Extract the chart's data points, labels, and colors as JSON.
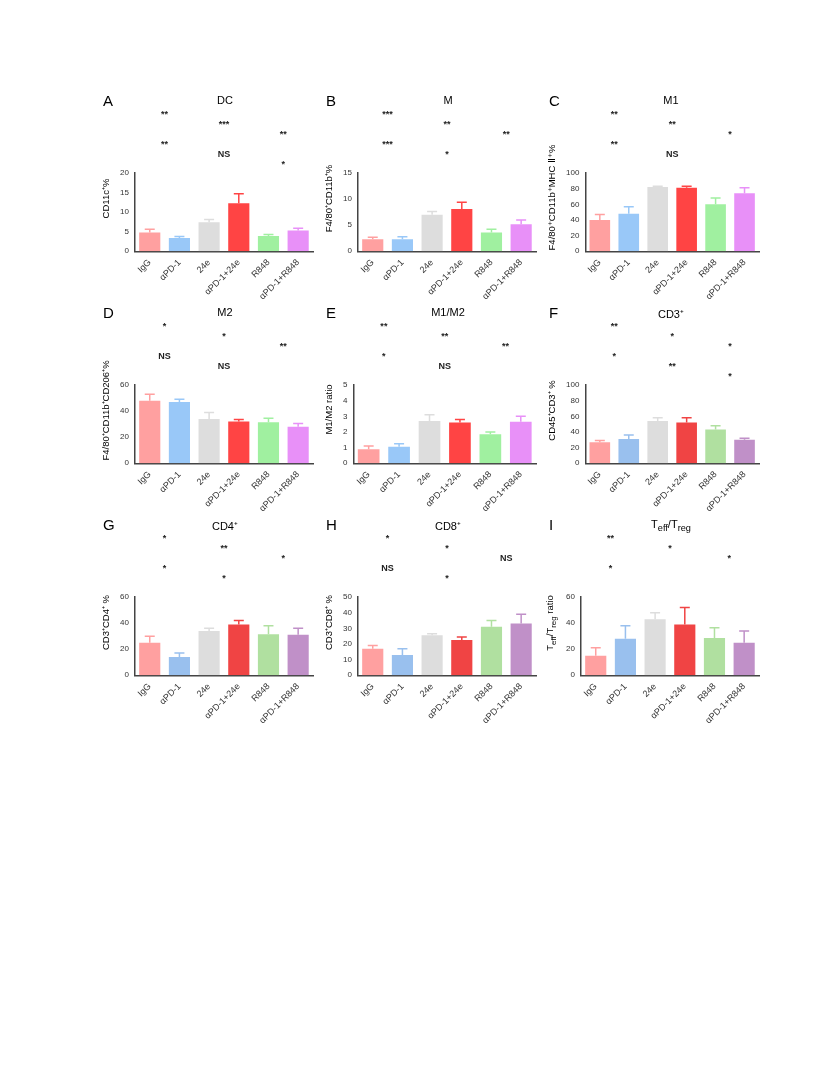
{
  "chart_data": [
    {
      "type": "bar",
      "title": "DC",
      "ylabel": "CD11c⁺%",
      "categories": [
        "IgG",
        "αPD-1",
        "24e",
        "αPD-1+24e",
        "R848",
        "αPD-1+R848"
      ],
      "values": [
        4.8,
        3.4,
        7.4,
        12.3,
        3.9,
        5.3
      ],
      "errors": [
        [
          4.8,
          5.6
        ],
        [
          3.4,
          3.8
        ],
        [
          7.4,
          8.1
        ],
        [
          12.3,
          14.7
        ],
        [
          3.9,
          4.3
        ],
        [
          5.3,
          5.9
        ]
      ],
      "colors": [
        "#ffa0a0",
        "#99c8f8",
        "#dddddd",
        "#ff4444",
        "#a0f0a0",
        "#e890f8"
      ],
      "ylim": [
        0,
        20
      ],
      "yticks": [
        0,
        5,
        10,
        15,
        20
      ],
      "grid": false,
      "legend": false,
      "annotations": [
        "A",
        "**",
        "***",
        "**",
        "**",
        "NS",
        "*"
      ]
    },
    {
      "type": "bar",
      "title": "M",
      "ylabel": "F4/80⁺CD11b⁺%",
      "categories": [
        "IgG",
        "αPD-1",
        "24e",
        "αPD-1+24e",
        "R848",
        "αPD-1+R848"
      ],
      "values": [
        2.3,
        2.3,
        7.0,
        8.1,
        3.6,
        5.2
      ],
      "errors": [
        [
          2.3,
          2.7
        ],
        [
          2.3,
          2.8
        ],
        [
          7.0,
          7.6
        ],
        [
          8.1,
          9.4
        ],
        [
          3.6,
          4.2
        ],
        [
          5.2,
          6.0
        ]
      ],
      "colors": [
        "#ffa0a0",
        "#99c8f8",
        "#dddddd",
        "#ff4444",
        "#a0f0a0",
        "#e890f8"
      ],
      "ylim": [
        0,
        15
      ],
      "yticks": [
        0,
        5,
        10,
        15
      ],
      "grid": false,
      "legend": false,
      "annotations": [
        "B",
        "***",
        "**",
        "**",
        "***",
        "*"
      ]
    },
    {
      "type": "bar",
      "title": "M1",
      "ylabel": "F4/80⁺CD11b⁺MHC Ⅱ⁺%",
      "categories": [
        "IgG",
        "αPD-1",
        "24e",
        "αPD-1+24e",
        "R848",
        "αPD-1+R848"
      ],
      "values": [
        40,
        48,
        82,
        81,
        60,
        74
      ],
      "errors": [
        [
          40,
          47
        ],
        [
          48,
          57
        ],
        [
          82,
          83
        ],
        [
          81,
          83
        ],
        [
          60,
          68
        ],
        [
          74,
          81
        ]
      ],
      "colors": [
        "#ffa0a0",
        "#99c8f8",
        "#dddddd",
        "#ff4444",
        "#a0f0a0",
        "#e890f8"
      ],
      "ylim": [
        0,
        100
      ],
      "yticks": [
        0,
        20,
        40,
        60,
        80,
        100
      ],
      "grid": false,
      "legend": false,
      "annotations": [
        "C",
        "**",
        "**",
        "*",
        "**",
        "NS"
      ]
    },
    {
      "type": "bar",
      "title": "M2",
      "ylabel": "F4/80⁺CD11b⁺CD206⁺%",
      "categories": [
        "IgG",
        "αPD-1",
        "24e",
        "αPD-1+24e",
        "R848",
        "αPD-1+R848"
      ],
      "values": [
        48,
        47,
        34,
        32,
        31.5,
        28
      ],
      "errors": [
        [
          48,
          53
        ],
        [
          47,
          49
        ],
        [
          34,
          39
        ],
        [
          32,
          33.5
        ],
        [
          31.5,
          34.5
        ],
        [
          28,
          30.5
        ]
      ],
      "colors": [
        "#ffa0a0",
        "#99c8f8",
        "#dddddd",
        "#ff4444",
        "#a0f0a0",
        "#e890f8"
      ],
      "ylim": [
        0,
        60
      ],
      "yticks": [
        0,
        20,
        40,
        60
      ],
      "grid": false,
      "legend": false,
      "annotations": [
        "D",
        "*",
        "*",
        "**",
        "NS",
        "NS"
      ]
    },
    {
      "type": "bar",
      "title": "M1/M2",
      "ylabel": "M1/M2 ratio",
      "categories": [
        "IgG",
        "αPD-1",
        "24e",
        "αPD-1+24e",
        "R848",
        "αPD-1+R848"
      ],
      "values": [
        0.9,
        1.05,
        2.7,
        2.6,
        1.85,
        2.65
      ],
      "errors": [
        [
          0.9,
          1.1
        ],
        [
          1.05,
          1.25
        ],
        [
          2.7,
          3.1
        ],
        [
          2.6,
          2.8
        ],
        [
          1.85,
          2.0
        ],
        [
          2.65,
          3.0
        ]
      ],
      "colors": [
        "#ffa0a0",
        "#99c8f8",
        "#dddddd",
        "#ff4444",
        "#a0f0a0",
        "#e890f8"
      ],
      "ylim": [
        0,
        5
      ],
      "yticks": [
        0,
        1,
        2,
        3,
        4,
        5
      ],
      "grid": false,
      "legend": false,
      "annotations": [
        "E",
        "**",
        "**",
        "**",
        "*",
        "NS"
      ]
    },
    {
      "type": "bar",
      "title": "CD3⁺",
      "ylabel": "CD45⁺CD3⁺ %",
      "categories": [
        "IgG",
        "αPD-1",
        "24e",
        "αPD-1+24e",
        "R848",
        "αPD-1+R848"
      ],
      "values": [
        27,
        31,
        54,
        52,
        43,
        30
      ],
      "errors": [
        [
          27,
          29
        ],
        [
          31,
          36
        ],
        [
          54,
          58
        ],
        [
          52,
          58
        ],
        [
          43,
          48
        ],
        [
          30,
          32
        ]
      ],
      "colors": [
        "#ffa0a0",
        "#99c0ee",
        "#dddddd",
        "#f04444",
        "#b0e0a0",
        "#c090c8"
      ],
      "ylim": [
        0,
        100
      ],
      "yticks": [
        0,
        20,
        40,
        60,
        80,
        100
      ],
      "grid": false,
      "legend": false,
      "annotations": [
        "F",
        "**",
        "*",
        "*",
        "*",
        "**",
        "*"
      ]
    },
    {
      "type": "bar",
      "title": "CD4⁺",
      "ylabel": "CD3⁺CD4⁺ %",
      "categories": [
        "IgG",
        "αPD-1",
        "24e",
        "αPD-1+24e",
        "R848",
        "αPD-1+R848"
      ],
      "values": [
        25,
        14,
        34,
        39,
        31.5,
        31
      ],
      "errors": [
        [
          25,
          30
        ],
        [
          14,
          17
        ],
        [
          34,
          36
        ],
        [
          39,
          42
        ],
        [
          31.5,
          38
        ],
        [
          31,
          36
        ]
      ],
      "colors": [
        "#ffa0a0",
        "#99c0ee",
        "#dddddd",
        "#f04444",
        "#b0e0a0",
        "#c090c8"
      ],
      "ylim": [
        0,
        60
      ],
      "yticks": [
        0,
        20,
        40,
        60
      ],
      "grid": false,
      "legend": false,
      "annotations": [
        "G",
        "*",
        "**",
        "*",
        "*",
        "*"
      ]
    },
    {
      "type": "bar",
      "title": "CD8⁺",
      "ylabel": "CD3⁺CD8⁺ %",
      "categories": [
        "IgG",
        "αPD-1",
        "24e",
        "αPD-1+24e",
        "R848",
        "αPD-1+R848"
      ],
      "values": [
        17,
        13,
        25.5,
        22.5,
        31,
        33
      ],
      "errors": [
        [
          17,
          19
        ],
        [
          13,
          17
        ],
        [
          25.5,
          26.5
        ],
        [
          22.5,
          24.5
        ],
        [
          31,
          35
        ],
        [
          33,
          39
        ]
      ],
      "colors": [
        "#ffa0a0",
        "#99c0ee",
        "#dddddd",
        "#f04444",
        "#b0e0a0",
        "#c090c8"
      ],
      "ylim": [
        0,
        50
      ],
      "yticks": [
        0,
        10,
        20,
        30,
        40,
        50
      ],
      "grid": false,
      "legend": false,
      "annotations": [
        "H",
        "*",
        "*",
        "NS",
        "NS",
        "*"
      ]
    },
    {
      "type": "bar",
      "title": "T$_{eff}$/T$_{reg}$",
      "ylabel": "T$_{eff}$/T$_{reg}$ ratio",
      "categories": [
        "IgG",
        "αPD-1",
        "24e",
        "αPD-1+24e",
        "R848",
        "αPD-1+R848"
      ],
      "values": [
        15,
        28,
        43,
        39,
        28.5,
        25
      ],
      "errors": [
        [
          15,
          21
        ],
        [
          28,
          38
        ],
        [
          43,
          48
        ],
        [
          39,
          52
        ],
        [
          28.5,
          36.5
        ],
        [
          25,
          34
        ]
      ],
      "colors": [
        "#ffa0a0",
        "#99c0ee",
        "#dddddd",
        "#f04444",
        "#b0e0a0",
        "#c090c8"
      ],
      "ylim": [
        0,
        60
      ],
      "yticks": [
        0,
        20,
        40,
        60
      ],
      "grid": false,
      "legend": false,
      "annotations": [
        "I",
        "**",
        "*",
        "*",
        "*"
      ]
    }
  ]
}
